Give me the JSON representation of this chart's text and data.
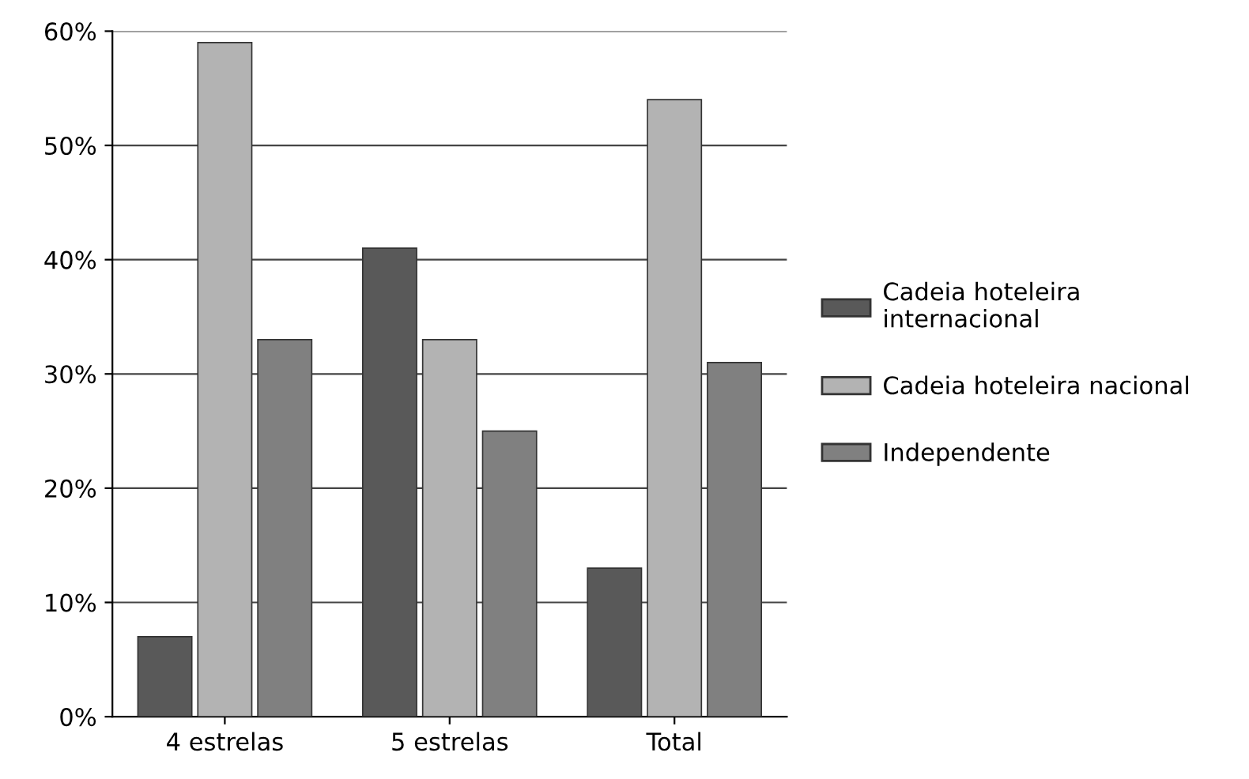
{
  "chart_data": {
    "type": "bar",
    "categories": [
      "4 estrelas",
      "5 estrelas",
      "Total"
    ],
    "series": [
      {
        "name": "Cadeia hoteleira\ninternacional",
        "color": "#595959",
        "values": [
          7,
          41,
          13
        ]
      },
      {
        "name": "Cadeia hoteleira nacional",
        "color": "#b3b3b3",
        "values": [
          59,
          33,
          54
        ]
      },
      {
        "name": "Independente",
        "color": "#808080",
        "values": [
          33,
          25,
          31
        ]
      }
    ],
    "ylim": [
      0,
      60
    ],
    "yticks": [
      {
        "value": 0,
        "label": "0%"
      },
      {
        "value": 10,
        "label": "10%"
      },
      {
        "value": 20,
        "label": "20%"
      },
      {
        "value": 30,
        "label": "30%"
      },
      {
        "value": 40,
        "label": "40%"
      },
      {
        "value": 50,
        "label": "50%"
      },
      {
        "value": 60,
        "label": "60%"
      }
    ],
    "grid": "y",
    "legend": "right"
  }
}
